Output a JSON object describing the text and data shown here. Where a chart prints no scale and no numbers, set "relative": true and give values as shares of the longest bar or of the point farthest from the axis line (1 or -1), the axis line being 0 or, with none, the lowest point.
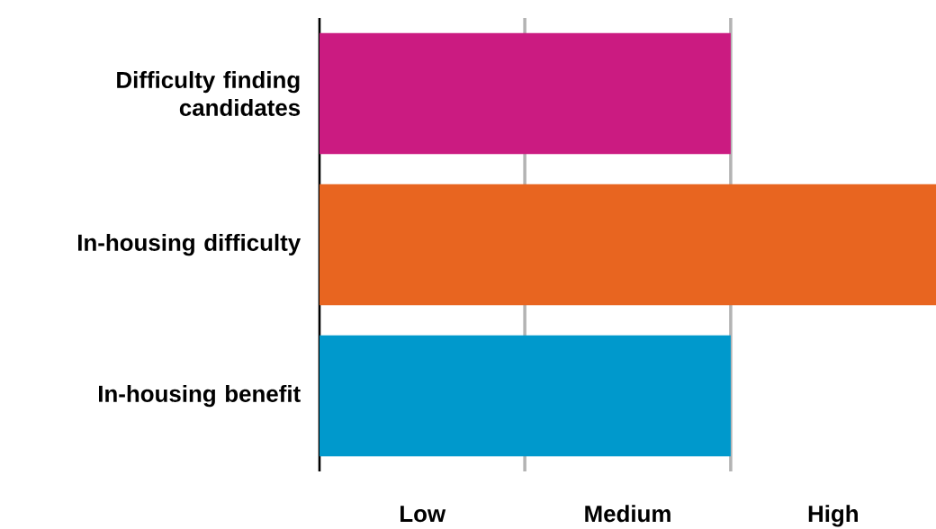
{
  "chart_data": {
    "type": "bar",
    "orientation": "horizontal",
    "relative": true,
    "categories": [
      "Difficulty finding candidates",
      "In-housing difficulty",
      "In-housing benefit"
    ],
    "values": [
      0.667,
      1,
      0.667
    ],
    "colors": [
      "#cb1b81",
      "#e86520",
      "#0099cc"
    ],
    "annotations": [
      "Low",
      "Medium",
      "High"
    ],
    "ref_lines": [
      {
        "axis": "x",
        "value": 0.333,
        "color": "#b3b3b3"
      },
      {
        "axis": "x",
        "value": 0.667,
        "color": "#b3b3b3"
      }
    ],
    "grid": false
  }
}
